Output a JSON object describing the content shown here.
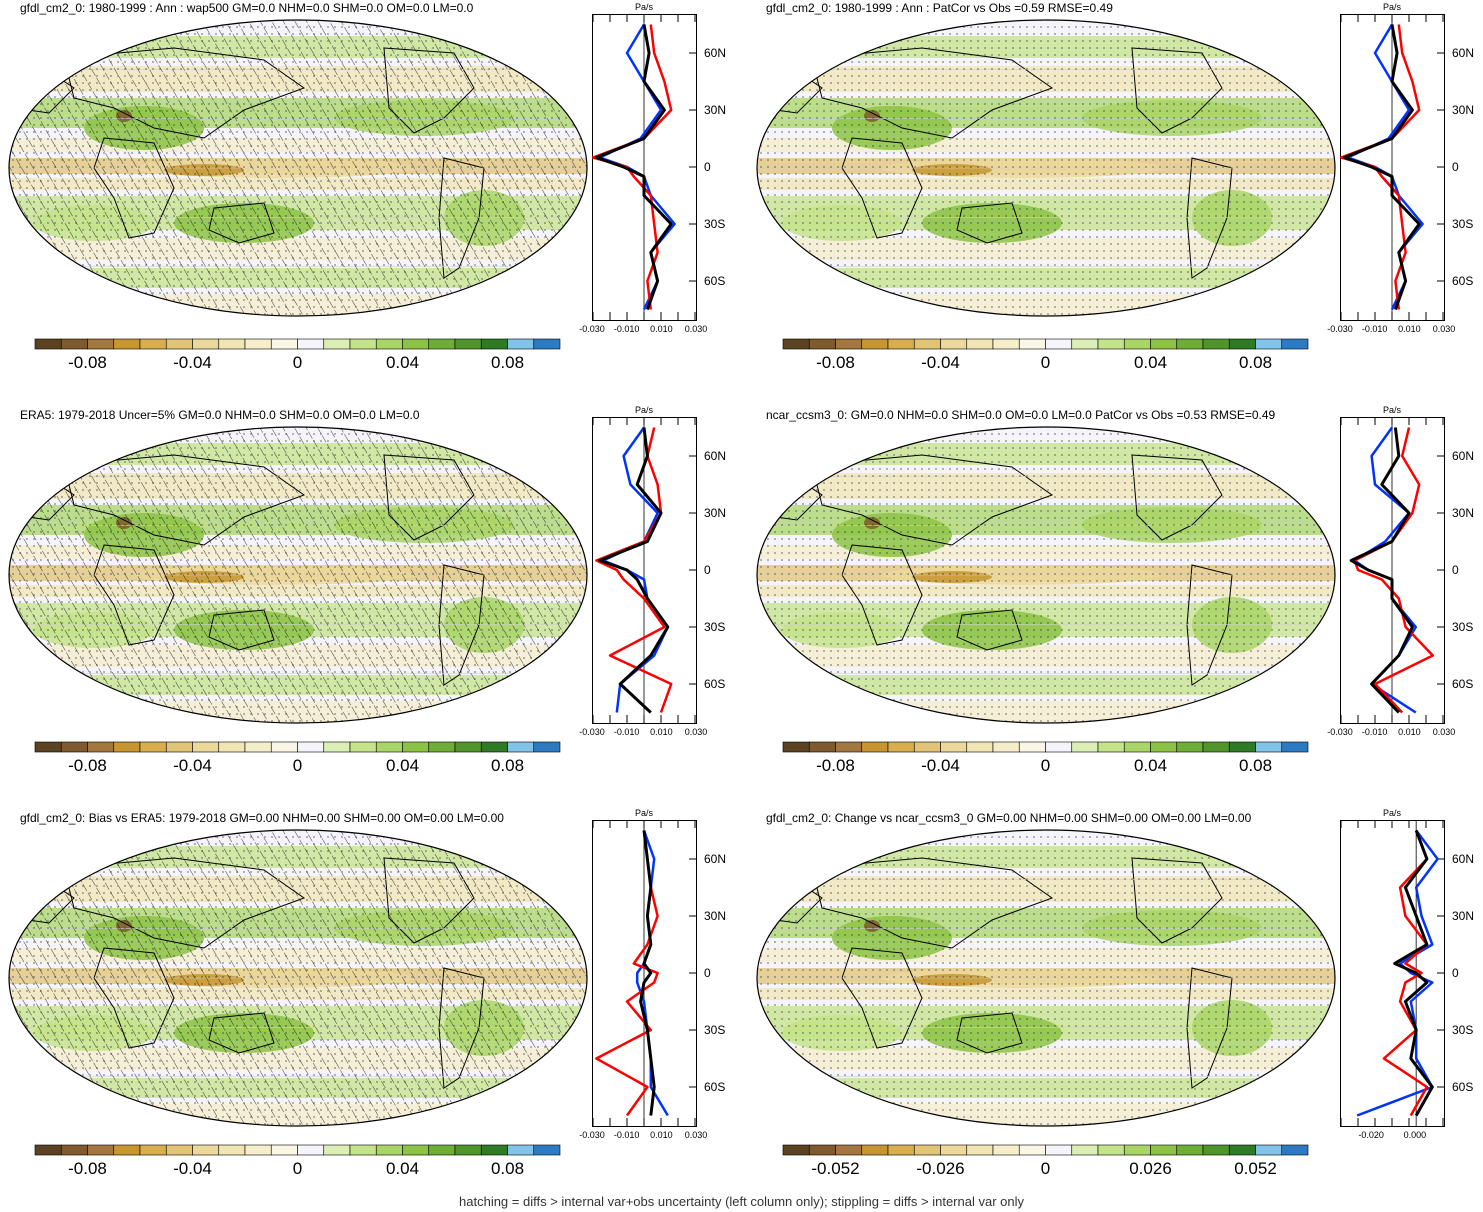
{
  "footnote": "hatching = diffs > internal var+obs uncertainty (left column only); stippling = diffs > internal var only",
  "colors": {
    "scale": [
      "#5c4220",
      "#7f5a2e",
      "#a3773f",
      "#c8962f",
      "#d8ae4e",
      "#e2c476",
      "#ecd89a",
      "#f1e5b4",
      "#f6eecb",
      "#fbf7e6",
      "#f4f4fa",
      "#dbeeb4",
      "#c4e38a",
      "#a9d566",
      "#8cc344",
      "#6eae37",
      "#4f952c",
      "#2f7a25",
      "#82c3ea",
      "#2c7ac1"
    ],
    "obs_line": "#000000",
    "model_line": "#ff0000",
    "ref_line": "#0033ff"
  },
  "panels": [
    {
      "title": "gfdl_cm2_0: 1980-1999 : Ann : wap500 GM=0.0 NHM=0.0 SHM=0.0 OM=0.0 LM=0.0",
      "hatching": true,
      "colorbar_labels": [
        "-0.08",
        "-0.04",
        "0",
        "0.04",
        "0.08"
      ],
      "profile": {
        "unit": "Pa/s",
        "xticks": [
          "-0.030",
          "-0.010",
          "0.010",
          "0.030"
        ],
        "lat_labels": [
          "60N",
          "30N",
          "0",
          "30S",
          "60S"
        ]
      }
    },
    {
      "title": "gfdl_cm2_0: 1980-1999 : Ann : PatCor vs Obs =0.59 RMSE=0.49",
      "hatching": false,
      "colorbar_labels": [
        "-0.08",
        "-0.04",
        "0",
        "0.04",
        "0.08"
      ],
      "profile": {
        "unit": "Pa/s",
        "xticks": [
          "-0.030",
          "-0.010",
          "0.010",
          "0.030"
        ],
        "lat_labels": [
          "60N",
          "30N",
          "0",
          "30S",
          "60S"
        ]
      }
    },
    {
      "title": "ERA5: 1979-2018 Uncer=5% GM=0.0 NHM=0.0 SHM=0.0 OM=0.0 LM=0.0",
      "hatching": true,
      "colorbar_labels": [
        "-0.08",
        "-0.04",
        "0",
        "0.04",
        "0.08"
      ],
      "profile": {
        "unit": "Pa/s",
        "xticks": [
          "-0.030",
          "-0.010",
          "0.010",
          "0.030"
        ],
        "lat_labels": [
          "60N",
          "30N",
          "0",
          "30S",
          "60S"
        ]
      }
    },
    {
      "title": "ncar_ccsm3_0: GM=0.0 NHM=0.0 SHM=0.0 OM=0.0 LM=0.0 PatCor vs Obs =0.53 RMSE=0.49",
      "hatching": false,
      "colorbar_labels": [
        "-0.08",
        "-0.04",
        "0",
        "0.04",
        "0.08"
      ],
      "profile": {
        "unit": "Pa/s",
        "xticks": [
          "-0.030",
          "-0.010",
          "0.010",
          "0.030"
        ],
        "lat_labels": [
          "60N",
          "30N",
          "0",
          "30S",
          "60S"
        ]
      }
    },
    {
      "title": "gfdl_cm2_0: Bias vs ERA5: 1979-2018 GM=0.00 NHM=0.00 SHM=0.00 OM=0.00 LM=0.00",
      "hatching": true,
      "colorbar_labels": [
        "-0.08",
        "-0.04",
        "0",
        "0.04",
        "0.08"
      ],
      "profile": {
        "unit": "Pa/s",
        "xticks": [
          "-0.030",
          "-0.010",
          "0.010",
          "0.030"
        ],
        "lat_labels": [
          "60N",
          "30N",
          "0",
          "30S",
          "60S"
        ]
      }
    },
    {
      "title": "gfdl_cm2_0: Change vs ncar_ccsm3_0 GM=0.00 NHM=0.00 SHM=0.00 OM=0.00 LM=0.00",
      "hatching": false,
      "colorbar_labels": [
        "-0.052",
        "-0.026",
        "0",
        "0.026",
        "0.052"
      ],
      "profile": {
        "unit": "Pa/s",
        "xticks": [
          "-0.020",
          "0.000"
        ],
        "lat_labels": [
          "60N",
          "30N",
          "0",
          "30S",
          "60S"
        ]
      }
    }
  ],
  "chart_data": [
    {
      "type": "heatmap",
      "title": "gfdl_cm2_0: 1980-1999 : Ann : wap500 GM=0.0 NHM=0.0 SHM=0.0 OM=0.0 LM=0.0",
      "colorbar_ticks": [
        -0.08,
        -0.04,
        0,
        0.04,
        0.08
      ],
      "n_levels": 20,
      "zonal_profile": {
        "unit": "Pa/s",
        "xlim": [
          -0.03,
          0.03
        ],
        "lat": [
          75,
          60,
          45,
          30,
          15,
          5,
          0,
          -5,
          -15,
          -30,
          -45,
          -60,
          -75
        ],
        "series": [
          {
            "color": "black",
            "values": [
              0.0,
              0.003,
              0.0,
              0.012,
              0.0,
              -0.028,
              -0.012,
              0.0,
              0.0,
              0.016,
              0.004,
              0.008,
              0.002
            ]
          },
          {
            "color": "red",
            "values": [
              0.004,
              0.006,
              0.012,
              0.016,
              0.0,
              -0.03,
              -0.01,
              -0.006,
              0.004,
              0.006,
              0.008,
              0.002,
              0.004
            ]
          },
          {
            "color": "blue",
            "values": [
              0.0,
              -0.01,
              0.0,
              0.01,
              -0.002,
              -0.026,
              -0.01,
              0.0,
              0.004,
              0.018,
              0.004,
              0.008,
              0.0
            ]
          }
        ]
      }
    },
    {
      "type": "heatmap",
      "title": "gfdl_cm2_0: 1980-1999 : Ann : PatCor vs Obs =0.59 RMSE=0.49",
      "colorbar_ticks": [
        -0.08,
        -0.04,
        0,
        0.04,
        0.08
      ],
      "n_levels": 20,
      "zonal_profile": {
        "unit": "Pa/s",
        "xlim": [
          -0.03,
          0.03
        ],
        "lat": [
          75,
          60,
          45,
          30,
          15,
          5,
          0,
          -5,
          -15,
          -30,
          -45,
          -60,
          -75
        ],
        "series": [
          {
            "color": "black",
            "values": [
              0.0,
              0.003,
              0.0,
              0.012,
              0.0,
              -0.028,
              -0.012,
              0.0,
              0.0,
              0.016,
              0.004,
              0.008,
              0.002
            ]
          },
          {
            "color": "red",
            "values": [
              0.004,
              0.006,
              0.012,
              0.016,
              0.0,
              -0.03,
              -0.01,
              -0.006,
              0.004,
              0.006,
              0.008,
              0.002,
              0.004
            ]
          },
          {
            "color": "blue",
            "values": [
              0.0,
              -0.01,
              0.0,
              0.01,
              -0.002,
              -0.026,
              -0.01,
              0.0,
              0.004,
              0.018,
              0.004,
              0.008,
              0.0
            ]
          }
        ]
      }
    },
    {
      "type": "heatmap",
      "title": "ERA5: 1979-2018 Uncer=5% GM=0.0 NHM=0.0 SHM=0.0 OM=0.0 LM=0.0",
      "colorbar_ticks": [
        -0.08,
        -0.04,
        0,
        0.04,
        0.08
      ],
      "n_levels": 20,
      "zonal_profile": {
        "unit": "Pa/s",
        "xlim": [
          -0.03,
          0.03
        ],
        "lat": [
          75,
          60,
          45,
          30,
          15,
          5,
          0,
          -5,
          -15,
          -30,
          -45,
          -60,
          -75
        ],
        "series": [
          {
            "color": "black",
            "values": [
              0.0,
              0.002,
              -0.004,
              0.01,
              0.002,
              -0.026,
              -0.01,
              -0.004,
              0.002,
              0.014,
              0.004,
              -0.014,
              0.004
            ]
          },
          {
            "color": "red",
            "values": [
              0.006,
              0.002,
              0.008,
              0.01,
              0.0,
              -0.028,
              -0.016,
              -0.012,
              0.0,
              0.012,
              -0.02,
              0.016,
              0.01
            ]
          },
          {
            "color": "blue",
            "values": [
              0.0,
              -0.012,
              -0.008,
              0.008,
              0.0,
              -0.024,
              -0.01,
              0.0,
              0.002,
              0.014,
              0.006,
              -0.014,
              -0.016
            ]
          }
        ]
      }
    },
    {
      "type": "heatmap",
      "title": "ncar_ccsm3_0: GM=0.0 NHM=0.0 SHM=0.0 OM=0.0 LM=0.0 PatCor vs Obs =0.53 RMSE=0.49",
      "colorbar_ticks": [
        -0.08,
        -0.04,
        0,
        0.04,
        0.08
      ],
      "n_levels": 20,
      "zonal_profile": {
        "unit": "Pa/s",
        "xlim": [
          -0.03,
          0.03
        ],
        "lat": [
          75,
          60,
          45,
          30,
          15,
          5,
          0,
          -5,
          -15,
          -30,
          -45,
          -60,
          -75
        ],
        "series": [
          {
            "color": "black",
            "values": [
              0.002,
              0.004,
              -0.006,
              0.01,
              0.0,
              -0.024,
              -0.014,
              0.0,
              0.0,
              0.012,
              0.004,
              -0.012,
              0.004
            ]
          },
          {
            "color": "red",
            "values": [
              0.01,
              0.006,
              0.016,
              0.012,
              0.0,
              -0.022,
              -0.02,
              -0.006,
              0.004,
              0.008,
              0.024,
              -0.01,
              0.006
            ]
          },
          {
            "color": "blue",
            "values": [
              0.0,
              -0.012,
              -0.01,
              0.01,
              -0.004,
              -0.022,
              -0.014,
              0.0,
              0.0,
              0.014,
              0.004,
              -0.012,
              0.014
            ]
          }
        ]
      }
    },
    {
      "type": "heatmap",
      "title": "gfdl_cm2_0: Bias vs ERA5: 1979-2018 GM=0.00 NHM=0.00 SHM=0.00 OM=0.00 LM=0.00",
      "colorbar_ticks": [
        -0.08,
        -0.04,
        0,
        0.04,
        0.08
      ],
      "n_levels": 20,
      "zonal_profile": {
        "unit": "Pa/s",
        "xlim": [
          -0.03,
          0.03
        ],
        "lat": [
          75,
          60,
          45,
          30,
          15,
          5,
          0,
          -5,
          -15,
          -30,
          -45,
          -60,
          -75
        ],
        "series": [
          {
            "color": "black",
            "values": [
              0.0,
              0.002,
              0.004,
              0.002,
              0.004,
              0.0,
              0.004,
              0.0,
              -0.002,
              0.002,
              0.004,
              0.006,
              0.004
            ]
          },
          {
            "color": "red",
            "values": [
              0.0,
              0.002,
              0.004,
              0.008,
              0.002,
              -0.006,
              0.008,
              0.006,
              -0.01,
              0.004,
              -0.028,
              0.002,
              -0.01
            ]
          },
          {
            "color": "blue",
            "values": [
              0.0,
              0.006,
              0.004,
              0.002,
              0.004,
              0.0,
              -0.004,
              -0.004,
              0.0,
              0.002,
              0.004,
              0.004,
              0.014
            ]
          }
        ]
      }
    },
    {
      "type": "heatmap",
      "title": "gfdl_cm2_0: Change vs ncar_ccsm3_0 GM=0.00 NHM=0.00 SHM=0.00 OM=0.00 LM=0.00",
      "colorbar_ticks": [
        -0.052,
        -0.026,
        0,
        0.026,
        0.052
      ],
      "n_levels": 20,
      "zonal_profile": {
        "unit": "Pa/s",
        "xlim": [
          -0.028,
          0.01
        ],
        "lat": [
          75,
          60,
          45,
          30,
          15,
          5,
          0,
          -5,
          -15,
          -30,
          -45,
          -60,
          -75
        ],
        "series": [
          {
            "color": "black",
            "values": [
              0.0,
              0.004,
              -0.004,
              0.0,
              0.004,
              -0.008,
              0.0,
              0.004,
              -0.004,
              0.0,
              -0.002,
              0.006,
              0.0
            ]
          },
          {
            "color": "red",
            "values": [
              0.0,
              0.004,
              -0.006,
              -0.004,
              0.004,
              -0.004,
              0.002,
              -0.004,
              -0.006,
              0.0,
              -0.012,
              0.004,
              -0.002
            ]
          },
          {
            "color": "blue",
            "values": [
              0.0,
              0.008,
              0.0,
              0.002,
              0.006,
              -0.006,
              -0.002,
              0.006,
              -0.002,
              0.0,
              0.0,
              0.006,
              -0.022
            ]
          }
        ]
      }
    }
  ]
}
